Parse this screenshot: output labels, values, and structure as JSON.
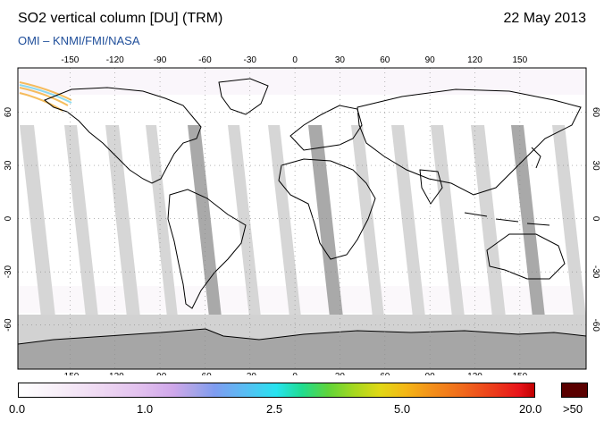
{
  "header": {
    "title": "SO2 vertical column [DU] (TRM)",
    "date": "22 May 2013",
    "credit": "OMI  –  KNMI/FMI/NASA"
  },
  "map": {
    "lon_ticks": [
      "-150",
      "-120",
      "-90",
      "-60",
      "-30",
      "0",
      "30",
      "60",
      "90",
      "120",
      "150"
    ],
    "lat_ticks": [
      "60",
      "30",
      "0",
      "-30",
      "-60"
    ],
    "colors": {
      "ocean": "#ffffff",
      "swath_gap": "#d6d6d6",
      "swath_dark": "#a9a9a9",
      "antarctica": "#a6a6a6",
      "polar_band": "#d2d2d2",
      "coast": "#000000"
    }
  },
  "colorbar": {
    "labels": [
      "0.0",
      "1.0",
      "2.5",
      "5.0",
      "20.0"
    ],
    "overflow_label": ">50"
  }
}
